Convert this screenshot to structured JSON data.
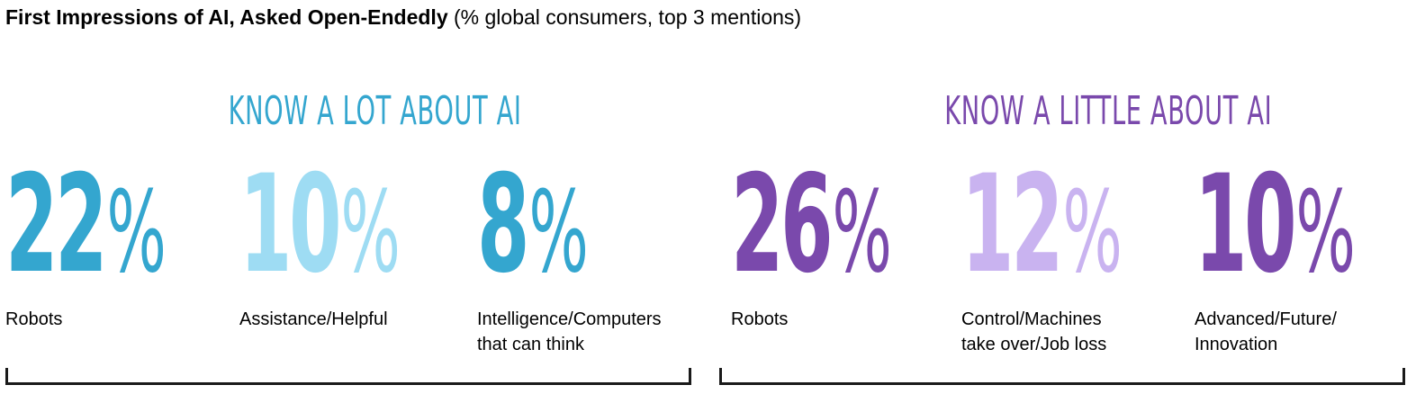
{
  "chart_data": {
    "type": "table",
    "title": "First Impressions of AI, Asked Open-Endedly",
    "subtitle": "(% global consumers, top 3 mentions)",
    "colors": {
      "group1_primary": "#34A6CF",
      "group1_light": "#9EDCF3",
      "group2_primary": "#7A49AC",
      "group2_light": "#C9B3F0"
    },
    "groups": [
      {
        "heading": "KNOW A LOT ABOUT AI",
        "color": "#34A6CF",
        "items": [
          {
            "value": 22,
            "unit": "%",
            "label_lines": [
              "Robots"
            ],
            "color": "#34A6CF"
          },
          {
            "value": 10,
            "unit": "%",
            "label_lines": [
              "Assistance/Helpful"
            ],
            "color": "#9EDCF3"
          },
          {
            "value": 8,
            "unit": "%",
            "label_lines": [
              "Intelligence/Computers",
              "that can think"
            ],
            "color": "#34A6CF"
          }
        ]
      },
      {
        "heading": "KNOW A LITTLE ABOUT AI",
        "color": "#7A49AC",
        "items": [
          {
            "value": 26,
            "unit": "%",
            "label_lines": [
              "Robots"
            ],
            "color": "#7A49AC"
          },
          {
            "value": 12,
            "unit": "%",
            "label_lines": [
              "Control/Machines",
              "take over/Job loss"
            ],
            "color": "#C9B3F0"
          },
          {
            "value": 10,
            "unit": "%",
            "label_lines": [
              "Advanced/Future/",
              "Innovation"
            ],
            "color": "#7A49AC"
          }
        ]
      }
    ]
  }
}
